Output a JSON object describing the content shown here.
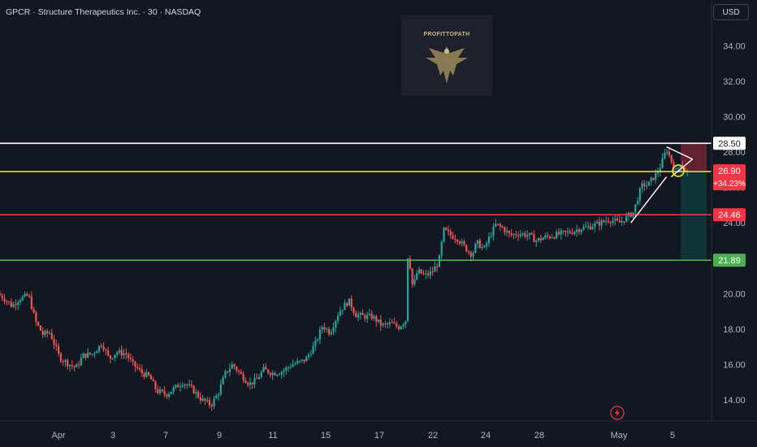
{
  "header": {
    "symbol_line": "GPCR · Structure Therapeutics Inc. · 30 · NASDAQ",
    "currency": "USD"
  },
  "watermark": {
    "text": "PROFITTOPATH",
    "icon": "eagle-icon"
  },
  "alert_icon": "lightning-icon",
  "colors": {
    "background": "#131722",
    "up": "#26a69a",
    "down": "#ef5350",
    "white_line": "#ffffff",
    "yellow_line": "#f5e342",
    "red_line": "#f23645",
    "green_line": "#4caf50",
    "axis_text": "#b2b5be"
  },
  "chart_data": {
    "type": "candlestick",
    "title": "GPCR · Structure Therapeutics Inc. · 30 · NASDAQ",
    "ylim": [
      12.8,
      36.6
    ],
    "y_ticks": [
      "34.00",
      "32.00",
      "30.00",
      "28.00",
      "26.00",
      "24.00",
      "22.00",
      "20.00",
      "18.00",
      "16.00",
      "14.00"
    ],
    "x_tick_labels": [
      "Apr",
      "3",
      "7",
      "9",
      "11",
      "15",
      "17",
      "22",
      "24",
      "28",
      "May",
      "5"
    ],
    "levels": [
      {
        "value": 28.5,
        "label": "28.50",
        "color": "#ffffff"
      },
      {
        "value": 26.9,
        "label": "26.90",
        "sublabel": "+34.23%",
        "color": "#f5e342"
      },
      {
        "value": 24.46,
        "label": "24.46",
        "color": "#f23645"
      },
      {
        "value": 21.89,
        "label": "21.89",
        "color": "#4caf50"
      }
    ],
    "last_price": "26.90",
    "change": "+34.23%",
    "path_points": [
      [
        0,
        20.0
      ],
      [
        0.03,
        19.7
      ],
      [
        0.06,
        19.3
      ],
      [
        0.09,
        19.7
      ],
      [
        0.13,
        19.9
      ],
      [
        0.16,
        18.4
      ],
      [
        0.19,
        17.7
      ],
      [
        0.22,
        17.8
      ],
      [
        0.26,
        16.4
      ],
      [
        0.29,
        16.1
      ],
      [
        0.33,
        15.8
      ],
      [
        0.36,
        16.5
      ],
      [
        0.4,
        16.6
      ],
      [
        0.44,
        17.2
      ],
      [
        0.47,
        16.3
      ],
      [
        0.5,
        16.7
      ],
      [
        0.54,
        16.6
      ],
      [
        0.57,
        16.0
      ],
      [
        0.61,
        15.5
      ],
      [
        0.64,
        15.3
      ],
      [
        0.67,
        14.5
      ],
      [
        0.71,
        14.3
      ],
      [
        0.74,
        14.6
      ],
      [
        0.78,
        15.0
      ],
      [
        0.82,
        14.6
      ],
      [
        0.86,
        14.0
      ],
      [
        0.9,
        13.7
      ],
      [
        0.93,
        14.4
      ],
      [
        0.96,
        15.5
      ],
      [
        0.99,
        16.0
      ],
      [
        1.02,
        15.5
      ],
      [
        1.06,
        14.9
      ],
      [
        1.09,
        15.1
      ],
      [
        1.12,
        15.7
      ],
      [
        1.16,
        15.5
      ],
      [
        1.2,
        15.6
      ],
      [
        1.24,
        16.0
      ],
      [
        1.27,
        16.1
      ],
      [
        1.3,
        16.3
      ],
      [
        1.34,
        17.2
      ],
      [
        1.37,
        18.2
      ],
      [
        1.4,
        17.8
      ],
      [
        1.44,
        19.0
      ],
      [
        1.48,
        19.6
      ],
      [
        1.51,
        18.8
      ],
      [
        1.55,
        18.7
      ],
      [
        1.58,
        18.7
      ],
      [
        1.62,
        18.2
      ],
      [
        1.66,
        18.3
      ],
      [
        1.69,
        18.1
      ],
      [
        1.72,
        18.5
      ],
      [
        1.73,
        22.5
      ],
      [
        1.75,
        20.3
      ],
      [
        1.77,
        21.3
      ],
      [
        1.8,
        21.0
      ],
      [
        1.83,
        21.2
      ],
      [
        1.86,
        21.8
      ],
      [
        1.88,
        23.6
      ],
      [
        1.91,
        23.3
      ],
      [
        1.94,
        23.1
      ],
      [
        1.97,
        22.6
      ],
      [
        2.0,
        22.2
      ],
      [
        2.02,
        22.9
      ],
      [
        2.05,
        22.5
      ],
      [
        2.08,
        23.4
      ],
      [
        2.1,
        23.9
      ],
      [
        2.13,
        23.7
      ],
      [
        2.16,
        23.3
      ],
      [
        2.2,
        23.4
      ],
      [
        2.24,
        23.3
      ],
      [
        2.27,
        23.0
      ],
      [
        2.31,
        23.2
      ],
      [
        2.35,
        23.3
      ],
      [
        2.38,
        23.4
      ],
      [
        2.42,
        23.5
      ],
      [
        2.46,
        23.7
      ],
      [
        2.5,
        23.8
      ],
      [
        2.54,
        24.0
      ],
      [
        2.58,
        24.2
      ],
      [
        2.62,
        24.0
      ],
      [
        2.65,
        24.3
      ],
      [
        2.68,
        24.6
      ],
      [
        2.7,
        25.5
      ],
      [
        2.72,
        26.2
      ],
      [
        2.74,
        26.1
      ],
      [
        2.76,
        26.5
      ],
      [
        2.78,
        26.8
      ],
      [
        2.8,
        27.4
      ],
      [
        2.82,
        28.2
      ],
      [
        2.84,
        27.5
      ],
      [
        2.86,
        26.9
      ],
      [
        2.88,
        27.4
      ],
      [
        2.9,
        26.9
      ]
    ],
    "pattern_lines": [
      {
        "from": [
          2.66,
          24.0
        ],
        "to": [
          2.81,
          26.6
        ]
      },
      {
        "from": [
          2.81,
          28.3
        ],
        "to": [
          2.92,
          27.6
        ]
      },
      {
        "from": [
          2.83,
          26.6
        ],
        "to": [
          2.92,
          27.6
        ]
      }
    ],
    "trade_box": {
      "x_from": 2.87,
      "x_to": 2.98,
      "entry": 26.9,
      "stop": 28.5,
      "target": 21.89
    },
    "marker_circle": {
      "x": 2.86,
      "y": 26.95
    }
  }
}
